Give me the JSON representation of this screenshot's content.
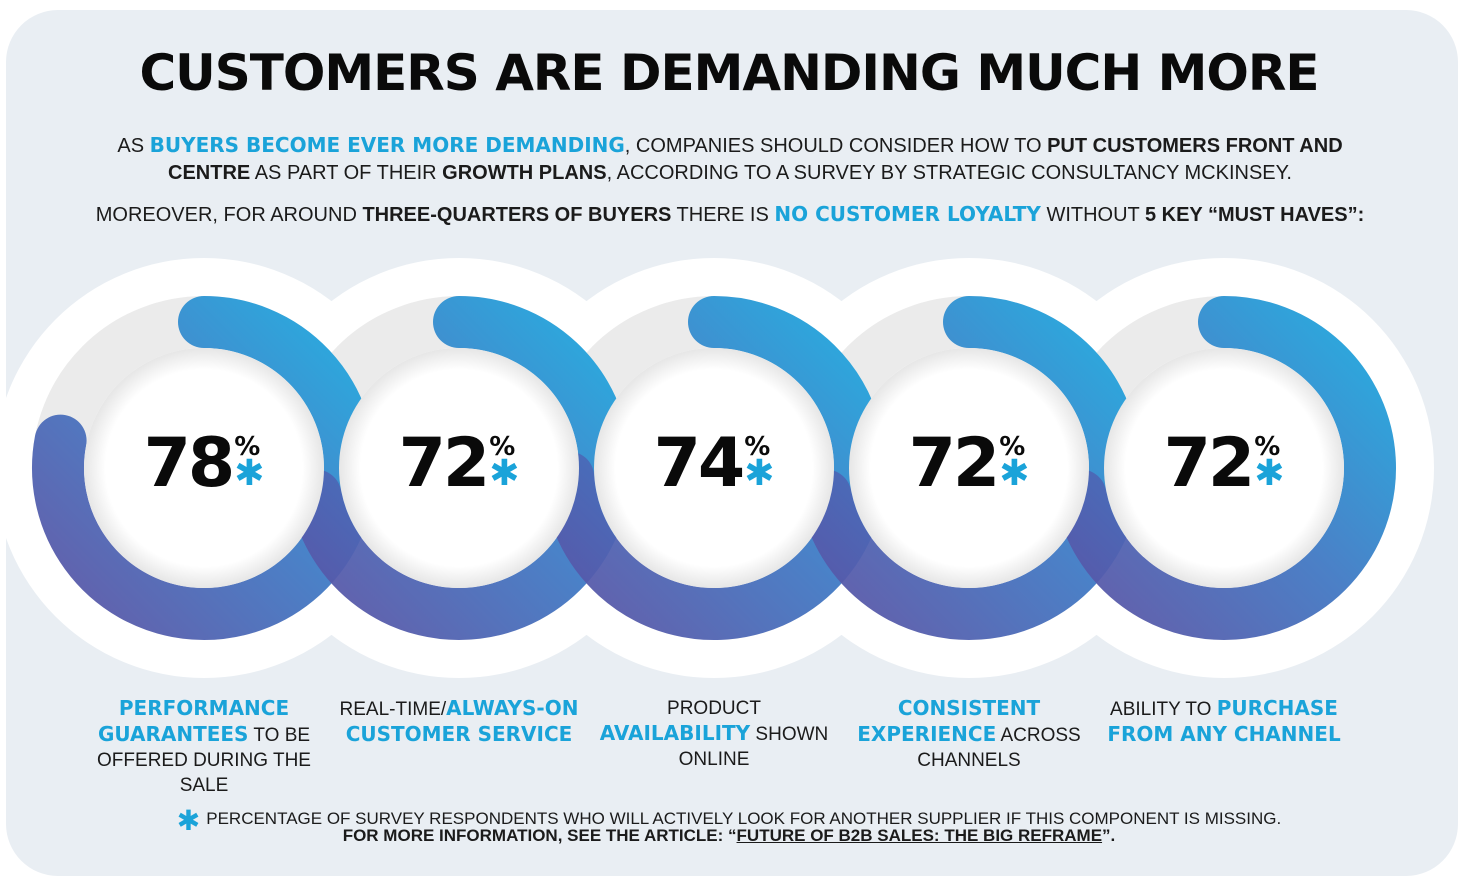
{
  "title": "CUSTOMERS ARE DEMANDING MUCH MORE",
  "intro": {
    "p1_a": "AS ",
    "p1_b": "BUYERS BECOME EVER MORE DEMANDING",
    "p1_c": ", COMPANIES SHOULD CONSIDER HOW TO ",
    "p1_d": "PUT CUSTOMERS FRONT AND CENTRE",
    "p1_e": " AS PART OF THEIR ",
    "p1_f": "GROWTH PLANS",
    "p1_g": ", ACCORDING TO A SURVEY BY STRATEGIC CONSULTANCY MCKINSEY.",
    "p2_a": "MOREOVER, FOR AROUND ",
    "p2_b": "THREE-QUARTERS OF BUYERS",
    "p2_c": " THERE IS ",
    "p2_d": "NO CUSTOMER LOYALTY",
    "p2_e": " WITHOUT ",
    "p2_f": "5 KEY “MUST HAVES”:"
  },
  "metrics": [
    {
      "value": "78",
      "caption": [
        {
          "t": "PERFORMANCE GUARANTEES",
          "hl": true
        },
        {
          "t": " TO BE OFFERED DURING THE SALE",
          "hl": false
        }
      ]
    },
    {
      "value": "72",
      "caption": [
        {
          "t": "REAL-TIME/",
          "hl": false
        },
        {
          "t": "ALWAYS-ON CUSTOMER SERVICE",
          "hl": true
        }
      ]
    },
    {
      "value": "74",
      "caption": [
        {
          "t": "PRODUCT ",
          "hl": false
        },
        {
          "t": "AVAILABILITY",
          "hl": true
        },
        {
          "t": " SHOWN ONLINE",
          "hl": false
        }
      ]
    },
    {
      "value": "72",
      "caption": [
        {
          "t": "CONSISTENT EXPERIENCE",
          "hl": true
        },
        {
          "t": " ACROSS CHANNELS",
          "hl": false
        }
      ]
    },
    {
      "value": "72",
      "caption": [
        {
          "t": "ABILITY TO ",
          "hl": false
        },
        {
          "t": "PURCHASE FROM ANY CHANNEL",
          "hl": true
        }
      ]
    }
  ],
  "percent_symbol": "%",
  "asterisk": "✱",
  "footnote": {
    "line1": "PERCENTAGE OF SURVEY RESPONDENTS WHO WILL ACTIVELY LOOK FOR ANOTHER SUPPLIER IF THIS COMPONENT IS MISSING.",
    "line2_a": "FOR MORE INFORMATION, SEE THE ARTICLE: “",
    "link": "FUTURE OF B2B SALES: THE BIG REFRAME",
    "line2_b": "”."
  },
  "colors": {
    "background": "#e9eef3",
    "accent": "#1aa3d9",
    "ring_start": "#5a53a5",
    "ring_end": "#1aa8df"
  },
  "icons": [
    "asterisk-icon"
  ]
}
